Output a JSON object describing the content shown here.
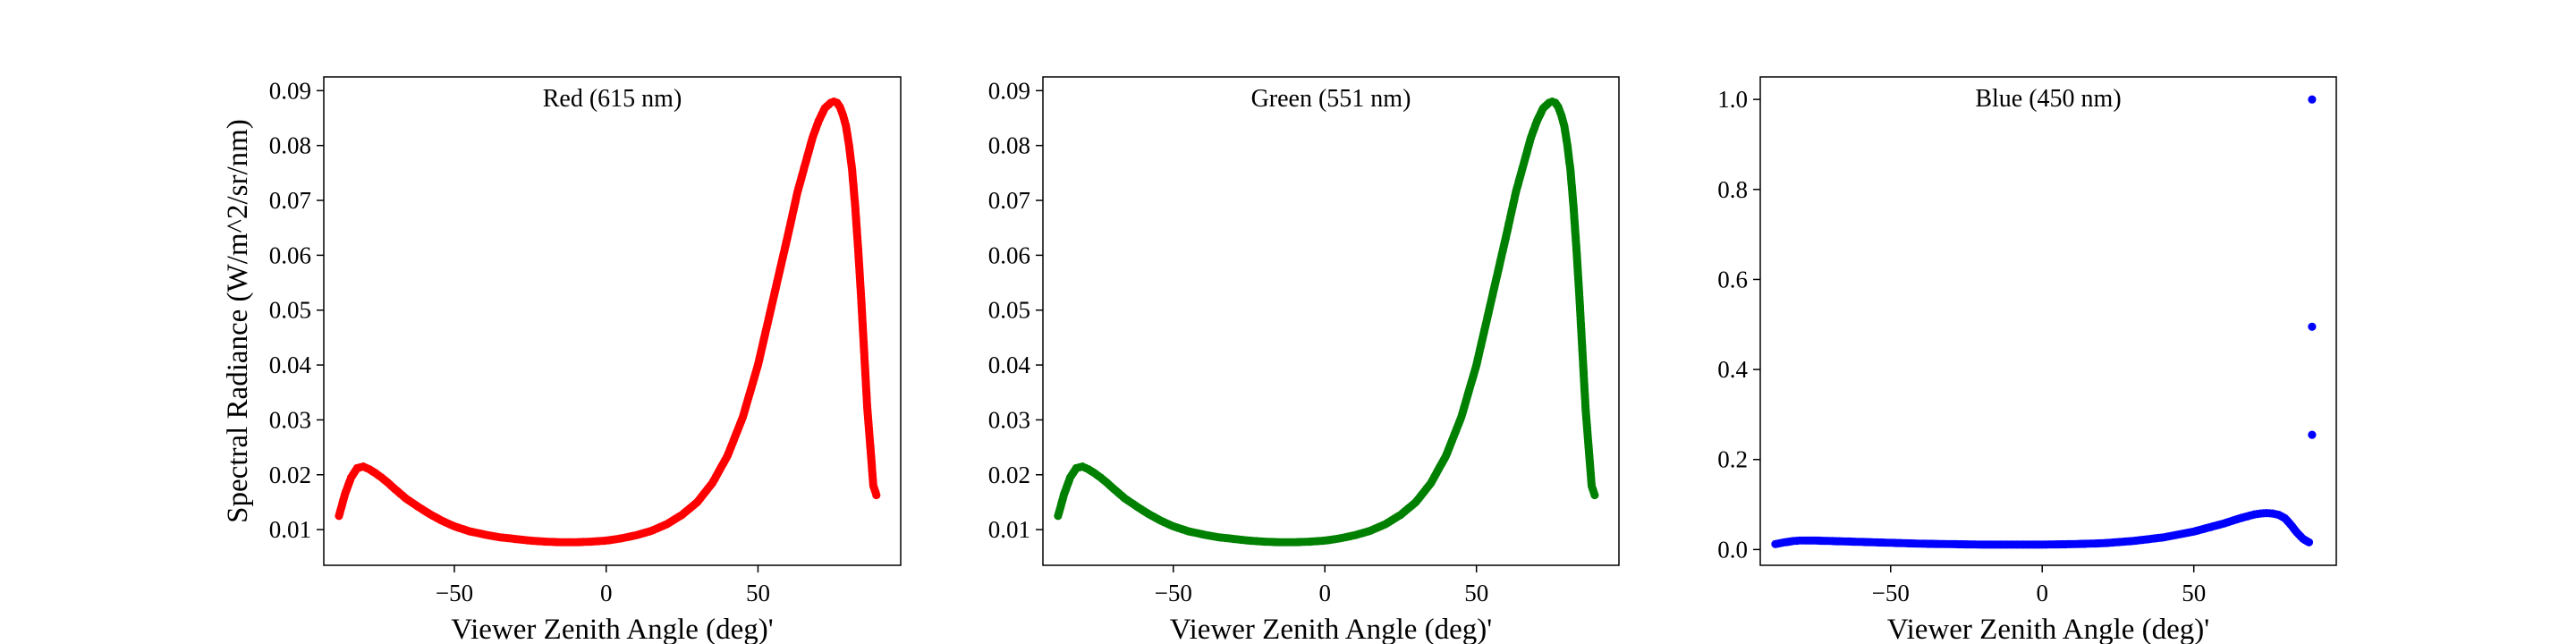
{
  "chart_data": [
    {
      "type": "scatter",
      "title": "Red (615 nm)",
      "xlabel": "Viewer Zenith Angle (deg)'",
      "ylabel": "Spectral Radiance (W/m^2/sr/nm)",
      "xlim": [
        -93,
        97
      ],
      "ylim": [
        0.0035,
        0.0925
      ],
      "xticks": [
        -50,
        0,
        50
      ],
      "xtick_labels": [
        "−50",
        "0",
        "50"
      ],
      "yticks": [
        0.01,
        0.02,
        0.03,
        0.04,
        0.05,
        0.06,
        0.07,
        0.08,
        0.09
      ],
      "ytick_labels": [
        "0.01",
        "0.02",
        "0.03",
        "0.04",
        "0.05",
        "0.06",
        "0.07",
        "0.08",
        "0.09"
      ],
      "grid": false,
      "legend": "none",
      "color": "#ff0000",
      "x": [
        -88,
        -86,
        -84,
        -82,
        -80,
        -78,
        -76,
        -74,
        -72,
        -70,
        -66,
        -62,
        -58,
        -54,
        -50,
        -45,
        -40,
        -35,
        -30,
        -25,
        -20,
        -15,
        -10,
        -5,
        0,
        5,
        10,
        15,
        20,
        25,
        30,
        35,
        40,
        45,
        50,
        55,
        60,
        63,
        66,
        68,
        70,
        72,
        74,
        75,
        76,
        77,
        78,
        79,
        80,
        81,
        82,
        83,
        84,
        85,
        86,
        87,
        88,
        89
      ],
      "y": [
        0.0125,
        0.0165,
        0.0195,
        0.0212,
        0.0215,
        0.021,
        0.0203,
        0.0195,
        0.0186,
        0.0176,
        0.0157,
        0.0142,
        0.0128,
        0.0116,
        0.0106,
        0.0097,
        0.0091,
        0.0086,
        0.0083,
        0.008,
        0.0078,
        0.0077,
        0.0077,
        0.0078,
        0.008,
        0.0084,
        0.009,
        0.0098,
        0.011,
        0.0127,
        0.015,
        0.0185,
        0.0235,
        0.0305,
        0.04,
        0.052,
        0.064,
        0.0715,
        0.0775,
        0.0815,
        0.0845,
        0.0868,
        0.0878,
        0.088,
        0.0878,
        0.087,
        0.0855,
        0.0835,
        0.08,
        0.0755,
        0.069,
        0.061,
        0.052,
        0.042,
        0.032,
        0.025,
        0.018,
        0.0163
      ]
    },
    {
      "type": "scatter",
      "title": "Green (551 nm)",
      "xlabel": "Viewer Zenith Angle (deg)'",
      "ylabel": "",
      "xlim": [
        -93,
        97
      ],
      "ylim": [
        0.0035,
        0.0925
      ],
      "xticks": [
        -50,
        0,
        50
      ],
      "xtick_labels": [
        "−50",
        "0",
        "50"
      ],
      "yticks": [
        0.01,
        0.02,
        0.03,
        0.04,
        0.05,
        0.06,
        0.07,
        0.08,
        0.09
      ],
      "ytick_labels": [
        "0.01",
        "0.02",
        "0.03",
        "0.04",
        "0.05",
        "0.06",
        "0.07",
        "0.08",
        "0.09"
      ],
      "grid": false,
      "legend": "none",
      "color": "#008000",
      "x": [
        -88,
        -86,
        -84,
        -82,
        -80,
        -78,
        -76,
        -74,
        -72,
        -70,
        -66,
        -62,
        -58,
        -54,
        -50,
        -45,
        -40,
        -35,
        -30,
        -25,
        -20,
        -15,
        -10,
        -5,
        0,
        5,
        10,
        15,
        20,
        25,
        30,
        35,
        40,
        45,
        50,
        55,
        60,
        63,
        66,
        68,
        70,
        72,
        74,
        75,
        76,
        77,
        78,
        79,
        80,
        81,
        82,
        83,
        84,
        85,
        86,
        87,
        88,
        89
      ],
      "y": [
        0.0125,
        0.0165,
        0.0195,
        0.0212,
        0.0215,
        0.021,
        0.0203,
        0.0195,
        0.0186,
        0.0176,
        0.0157,
        0.0142,
        0.0128,
        0.0116,
        0.0106,
        0.0097,
        0.0091,
        0.0086,
        0.0083,
        0.008,
        0.0078,
        0.0077,
        0.0077,
        0.0078,
        0.008,
        0.0084,
        0.009,
        0.0098,
        0.011,
        0.0127,
        0.015,
        0.0185,
        0.0235,
        0.0305,
        0.04,
        0.052,
        0.064,
        0.0715,
        0.0775,
        0.0815,
        0.0845,
        0.0868,
        0.0878,
        0.088,
        0.0878,
        0.087,
        0.0855,
        0.0835,
        0.08,
        0.0755,
        0.069,
        0.061,
        0.052,
        0.042,
        0.032,
        0.025,
        0.018,
        0.0163
      ]
    },
    {
      "type": "scatter",
      "title": "Blue (450 nm)",
      "xlabel": "Viewer Zenith Angle (deg)'",
      "ylabel": "",
      "xlim": [
        -93,
        97
      ],
      "ylim": [
        -0.035,
        1.05
      ],
      "xticks": [
        -50,
        0,
        50
      ],
      "xtick_labels": [
        "−50",
        "0",
        "50"
      ],
      "yticks": [
        0.0,
        0.2,
        0.4,
        0.6,
        0.8,
        1.0
      ],
      "ytick_labels": [
        "0.0",
        "0.2",
        "0.4",
        "0.6",
        "0.8",
        "1.0"
      ],
      "grid": false,
      "legend": "none",
      "color": "#0000ff",
      "x": [
        -88,
        -85,
        -82,
        -80,
        -78,
        -75,
        -70,
        -60,
        -50,
        -40,
        -30,
        -20,
        -10,
        0,
        10,
        20,
        30,
        40,
        50,
        55,
        60,
        65,
        70,
        72,
        74,
        76,
        78,
        80,
        82,
        84,
        86,
        88,
        89,
        89,
        89
      ],
      "y": [
        0.012,
        0.016,
        0.019,
        0.02,
        0.02,
        0.02,
        0.019,
        0.017,
        0.015,
        0.013,
        0.012,
        0.011,
        0.011,
        0.011,
        0.012,
        0.014,
        0.019,
        0.027,
        0.04,
        0.049,
        0.058,
        0.069,
        0.078,
        0.08,
        0.081,
        0.08,
        0.077,
        0.07,
        0.055,
        0.038,
        0.024,
        0.016,
        0.255,
        0.495,
        1.0
      ]
    }
  ]
}
